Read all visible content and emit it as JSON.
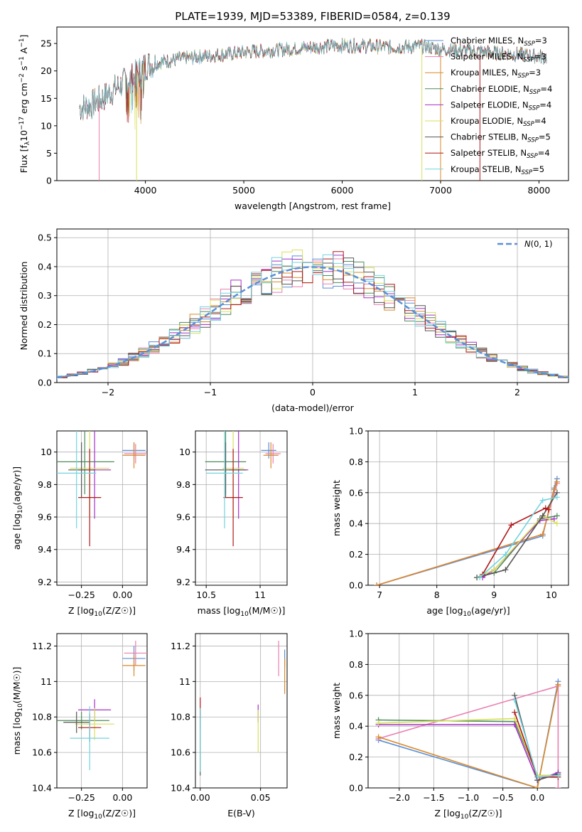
{
  "figure_title": "PLATE=1939, MJD=53389, FIBERID=0584, z=0.139",
  "legend_labels": [
    {
      "base": "Chabrier MILES, N",
      "sub": "SSP",
      "tail": "=3"
    },
    {
      "base": "Salpeter MILES, N",
      "sub": "SSP",
      "tail": "=3"
    },
    {
      "base": "Kroupa MILES, N",
      "sub": "SSP",
      "tail": "=3"
    },
    {
      "base": "Chabrier ELODIE, N",
      "sub": "SSP",
      "tail": "=4"
    },
    {
      "base": "Salpeter ELODIE, N",
      "sub": "SSP",
      "tail": "=4"
    },
    {
      "base": "Kroupa ELODIE, N",
      "sub": "SSP",
      "tail": "=4"
    },
    {
      "base": "Chabrier STELIB, N",
      "sub": "SSP",
      "tail": "=5"
    },
    {
      "base": "Salpeter STELIB, N",
      "sub": "SSP",
      "tail": "=4"
    },
    {
      "base": "Kroupa STELIB, N",
      "sub": "SSP",
      "tail": "=5"
    }
  ],
  "model_colors": [
    "#5b8fd6",
    "#ea7fb0",
    "#d98a2b",
    "#4f8b5a",
    "#a431c4",
    "#d8e05a",
    "#555555",
    "#b01818",
    "#73d3de"
  ],
  "chart_data": [
    {
      "id": "spectrum",
      "type": "line",
      "xlabel": "wavelength [Angstrom, rest frame]",
      "ylabel_parts": {
        "pre": "Flux [f",
        "lambda_sub": "λ",
        "mid": "10",
        "exp1": "−17",
        "post1": " erg cm",
        "exp2": "−2",
        "post2": " s",
        "exp3": "−1",
        "post3": " A",
        "exp4": "−1",
        "end": "]"
      },
      "xlim": [
        3100,
        8300
      ],
      "ylim": [
        0,
        28
      ],
      "xticks": [
        4000,
        5000,
        6000,
        7000,
        8000
      ],
      "yticks": [
        0,
        5,
        10,
        15,
        20,
        25
      ],
      "grid": false,
      "legend": "top-right",
      "continuum": [
        [
          3330,
          13.3
        ],
        [
          3450,
          13.8
        ],
        [
          3600,
          15.5
        ],
        [
          3750,
          17.5
        ],
        [
          3900,
          19.3
        ],
        [
          4000,
          21.0
        ],
        [
          4200,
          21.8
        ],
        [
          4500,
          22.5
        ],
        [
          4800,
          23.0
        ],
        [
          5000,
          23.4
        ],
        [
          5300,
          23.8
        ],
        [
          5600,
          24.2
        ],
        [
          5900,
          24.6
        ],
        [
          6200,
          24.6
        ],
        [
          6500,
          24.3
        ],
        [
          6800,
          24.5
        ],
        [
          7000,
          24.0
        ],
        [
          7400,
          23.5
        ],
        [
          7800,
          23.0
        ],
        [
          8080,
          22.5
        ]
      ],
      "cutoffs": [
        {
          "model": 1,
          "x": 3530
        },
        {
          "model": 5,
          "x": 3910
        },
        {
          "model": 5,
          "x": 6810
        },
        {
          "model": 2,
          "x": 7000
        },
        {
          "model": 7,
          "x": 7400
        }
      ]
    },
    {
      "id": "residual-histogram",
      "type": "bar",
      "xlabel": "(data-model)/error",
      "ylabel": "Normed distribution",
      "xlim": [
        -2.5,
        2.5
      ],
      "ylim": [
        0,
        0.53
      ],
      "xticks": [
        -2,
        -1,
        0,
        1,
        2
      ],
      "xtick_labels": [
        "−2",
        "−1",
        "0",
        "1",
        "2"
      ],
      "yticks": [
        0.0,
        0.1,
        0.2,
        0.3,
        0.4,
        0.5
      ],
      "grid": true,
      "legend": "top-right",
      "reference_label": "N(0,1)",
      "bin_width": 0.1,
      "reference_sigma": 1.0
    },
    {
      "id": "age-vs-metallicity",
      "type": "scatter",
      "xlabel": "Z [log10(Z/Z☉)]",
      "ylabel": "age [log10(age/yr)]",
      "xlim": [
        -0.4,
        0.15
      ],
      "ylim": [
        9.18,
        10.13
      ],
      "xticks": [
        -0.25,
        0.0
      ],
      "xtick_labels": [
        "−0.25",
        "0.00"
      ],
      "yticks": [
        9.2,
        9.4,
        9.6,
        9.8,
        10.0
      ],
      "grid": true,
      "points": [
        {
          "model": 0,
          "x": 0.07,
          "y": 10.01,
          "xerr": 0.07,
          "yerr": 0.05
        },
        {
          "model": 1,
          "x": 0.08,
          "y": 9.99,
          "xerr": 0.07,
          "yerr": 0.06
        },
        {
          "model": 2,
          "x": 0.07,
          "y": 9.98,
          "xerr": 0.07,
          "yerr": 0.08
        },
        {
          "model": 3,
          "x": -0.23,
          "y": 9.94,
          "xerr": 0.18,
          "yerr": 0.2
        },
        {
          "model": 4,
          "x": -0.17,
          "y": 9.89,
          "xerr": 0.1,
          "yerr": 0.3
        },
        {
          "model": 5,
          "x": -0.2,
          "y": 9.9,
          "xerr": 0.12,
          "yerr": 0.3
        },
        {
          "model": 6,
          "x": -0.25,
          "y": 9.89,
          "xerr": 0.08,
          "yerr": 0.17
        },
        {
          "model": 7,
          "x": -0.2,
          "y": 9.72,
          "xerr": 0.07,
          "yerr": 0.3
        },
        {
          "model": 8,
          "x": -0.28,
          "y": 9.87,
          "xerr": 0.12,
          "yerr": 0.34
        }
      ]
    },
    {
      "id": "age-vs-mass",
      "type": "scatter",
      "xlabel": "mass [log10(M/M☉)]",
      "ylabel": "",
      "xlim": [
        10.4,
        11.25
      ],
      "ylim": [
        9.18,
        10.13
      ],
      "xticks": [
        10.5,
        11.0
      ],
      "yticks": [
        9.2,
        9.4,
        9.6,
        9.8,
        10.0
      ],
      "grid": true,
      "points": [
        {
          "model": 0,
          "x": 11.08,
          "y": 10.01,
          "xerr": 0.07,
          "yerr": 0.05
        },
        {
          "model": 1,
          "x": 11.12,
          "y": 9.99,
          "xerr": 0.07,
          "yerr": 0.06
        },
        {
          "model": 2,
          "x": 11.1,
          "y": 9.98,
          "xerr": 0.07,
          "yerr": 0.08
        },
        {
          "model": 3,
          "x": 10.68,
          "y": 9.94,
          "xerr": 0.19,
          "yerr": 0.2
        },
        {
          "model": 4,
          "x": 10.8,
          "y": 9.89,
          "xerr": 0.09,
          "yerr": 0.3
        },
        {
          "model": 5,
          "x": 10.75,
          "y": 9.9,
          "xerr": 0.1,
          "yerr": 0.3
        },
        {
          "model": 6,
          "x": 10.68,
          "y": 9.89,
          "xerr": 0.19,
          "yerr": 0.17
        },
        {
          "model": 7,
          "x": 10.75,
          "y": 9.72,
          "xerr": 0.09,
          "yerr": 0.3
        },
        {
          "model": 8,
          "x": 10.67,
          "y": 9.87,
          "xerr": 0.17,
          "yerr": 0.34
        }
      ]
    },
    {
      "id": "mass-weight-vs-age",
      "type": "line",
      "xlabel": "age [log10(age/yr)]",
      "ylabel": "mass weight",
      "xlim": [
        6.8,
        10.3
      ],
      "ylim": [
        0,
        1.0
      ],
      "xticks": [
        7,
        8,
        9,
        10
      ],
      "yticks": [
        0.0,
        0.2,
        0.4,
        0.6,
        0.8,
        1.0
      ],
      "grid": true,
      "series": [
        {
          "model": 0,
          "x": [
            6.95,
            9.85,
            10.05,
            10.1
          ],
          "y": [
            0.0,
            0.32,
            0.63,
            0.69
          ]
        },
        {
          "model": 1,
          "x": [
            6.95,
            9.85,
            10.05,
            10.1
          ],
          "y": [
            0.0,
            0.33,
            0.6,
            0.66
          ]
        },
        {
          "model": 2,
          "x": [
            6.95,
            9.85,
            10.05,
            10.1
          ],
          "y": [
            0.0,
            0.33,
            0.62,
            0.67
          ]
        },
        {
          "model": 3,
          "x": [
            8.7,
            9.0,
            9.8,
            10.1
          ],
          "y": [
            0.05,
            0.08,
            0.43,
            0.45
          ]
        },
        {
          "model": 4,
          "x": [
            8.8,
            9.0,
            9.8,
            10.05
          ],
          "y": [
            0.05,
            0.1,
            0.42,
            0.43
          ]
        },
        {
          "model": 5,
          "x": [
            8.7,
            9.0,
            9.85,
            10.1
          ],
          "y": [
            0.05,
            0.1,
            0.45,
            0.4
          ]
        },
        {
          "model": 6,
          "x": [
            8.7,
            9.2,
            9.85,
            10.1
          ],
          "y": [
            0.05,
            0.1,
            0.45,
            0.6
          ]
        },
        {
          "model": 7,
          "x": [
            8.8,
            9.3,
            9.9,
            9.95
          ],
          "y": [
            0.07,
            0.39,
            0.5,
            0.49
          ]
        },
        {
          "model": 8,
          "x": [
            8.75,
            9.2,
            9.85,
            10.1
          ],
          "y": [
            0.05,
            0.2,
            0.55,
            0.57
          ]
        }
      ]
    },
    {
      "id": "mass-vs-metallicity",
      "type": "scatter",
      "xlabel": "Z [log10(Z/Z☉)]",
      "ylabel": "mass [log10(M/M☉)]",
      "xlim": [
        -0.4,
        0.15
      ],
      "ylim": [
        10.4,
        11.27
      ],
      "xticks": [
        -0.25,
        0.0
      ],
      "xtick_labels": [
        "−0.25",
        "0.00"
      ],
      "yticks": [
        10.4,
        10.6,
        10.8,
        11.0,
        11.2
      ],
      "grid": true,
      "points": [
        {
          "model": 0,
          "x": 0.07,
          "y": 11.13,
          "xerr": 0.07,
          "yerr": 0.07
        },
        {
          "model": 1,
          "x": 0.08,
          "y": 11.16,
          "xerr": 0.07,
          "yerr": 0.07
        },
        {
          "model": 2,
          "x": 0.07,
          "y": 11.09,
          "xerr": 0.07,
          "yerr": 0.06
        },
        {
          "model": 3,
          "x": -0.25,
          "y": 10.78,
          "xerr": 0.17,
          "yerr": 0.05
        },
        {
          "model": 4,
          "x": -0.17,
          "y": 10.84,
          "xerr": 0.1,
          "yerr": 0.06
        },
        {
          "model": 5,
          "x": -0.17,
          "y": 10.76,
          "xerr": 0.12,
          "yerr": 0.09
        },
        {
          "model": 6,
          "x": -0.28,
          "y": 10.77,
          "xerr": 0.08,
          "yerr": 0.06
        },
        {
          "model": 7,
          "x": -0.2,
          "y": 10.74,
          "xerr": 0.07,
          "yerr": 0.08
        },
        {
          "model": 8,
          "x": -0.2,
          "y": 10.68,
          "xerr": 0.12,
          "yerr": 0.18
        }
      ]
    },
    {
      "id": "mass-vs-extinction",
      "type": "scatter",
      "xlabel": "E(B-V)",
      "ylabel": "",
      "xlim": [
        -0.004,
        0.072
      ],
      "ylim": [
        10.4,
        11.27
      ],
      "xticks": [
        0.0,
        0.05
      ],
      "xtick_labels": [
        "0.00",
        "0.05"
      ],
      "yticks": [
        10.4,
        10.6,
        10.8,
        11.0,
        11.2
      ],
      "grid": true,
      "points": [
        {
          "model": 0,
          "x": 0.07,
          "y": 11.13,
          "xerr": 0.0,
          "yerr": 0.05
        },
        {
          "model": 1,
          "x": 0.065,
          "y": 11.13,
          "xerr": 0.0,
          "yerr": 0.1
        },
        {
          "model": 2,
          "x": 0.07,
          "y": 11.03,
          "xerr": 0.0,
          "yerr": 0.1
        },
        {
          "model": 3,
          "x": 0.0,
          "y": 10.78,
          "xerr": 0.0,
          "yerr": 0.05
        },
        {
          "model": 4,
          "x": 0.048,
          "y": 10.82,
          "xerr": 0.0,
          "yerr": 0.05
        },
        {
          "model": 5,
          "x": 0.048,
          "y": 10.72,
          "xerr": 0.0,
          "yerr": 0.12
        },
        {
          "model": 6,
          "x": 0.0,
          "y": 10.66,
          "xerr": 0.0,
          "yerr": 0.19
        },
        {
          "model": 7,
          "x": 0.0,
          "y": 10.85,
          "xerr": 0.0,
          "yerr": 0.06
        },
        {
          "model": 8,
          "x": 0.0,
          "y": 10.67,
          "xerr": 0.0,
          "yerr": 0.18
        }
      ]
    },
    {
      "id": "mass-weight-vs-metallicity",
      "type": "line",
      "xlabel": "Z [log10(Z/Z☉)]",
      "ylabel": "mass weight",
      "xlim": [
        -2.45,
        0.45
      ],
      "ylim": [
        0,
        1.0
      ],
      "xticks": [
        -2.0,
        -1.5,
        -1.0,
        -0.5,
        0.0
      ],
      "xtick_labels": [
        "−2.0",
        "−1.5",
        "−1.0",
        "−0.5",
        "0.0"
      ],
      "yticks": [
        0.0,
        0.2,
        0.4,
        0.6,
        0.8,
        1.0
      ],
      "grid": true,
      "series": [
        {
          "model": 0,
          "x": [
            -2.3,
            0.0,
            0.3
          ],
          "y": [
            0.31,
            0.0,
            0.69
          ]
        },
        {
          "model": 1,
          "x": [
            -2.3,
            0.3,
            0.3
          ],
          "y": [
            0.32,
            0.66,
            0.0
          ]
        },
        {
          "model": 2,
          "x": [
            -2.3,
            0.0,
            0.3
          ],
          "y": [
            0.33,
            0.0,
            0.67
          ]
        },
        {
          "model": 3,
          "x": [
            -2.3,
            -0.33,
            0.0,
            0.3
          ],
          "y": [
            0.44,
            0.43,
            0.08,
            0.08
          ]
        },
        {
          "model": 4,
          "x": [
            -2.3,
            -0.33,
            0.0,
            0.3
          ],
          "y": [
            0.41,
            0.41,
            0.05,
            0.1
          ]
        },
        {
          "model": 5,
          "x": [
            -2.3,
            -0.33,
            0.0,
            0.3
          ],
          "y": [
            0.42,
            0.45,
            0.08,
            0.08
          ]
        },
        {
          "model": 6,
          "x": [
            -0.33,
            0.0,
            0.3
          ],
          "y": [
            0.6,
            0.05,
            0.09
          ]
        },
        {
          "model": 7,
          "x": [
            -0.33,
            0.0,
            0.3
          ],
          "y": [
            0.49,
            0.07,
            0.07
          ]
        },
        {
          "model": 8,
          "x": [
            -0.33,
            0.0,
            0.3
          ],
          "y": [
            0.57,
            0.07,
            0.08
          ]
        }
      ]
    }
  ]
}
